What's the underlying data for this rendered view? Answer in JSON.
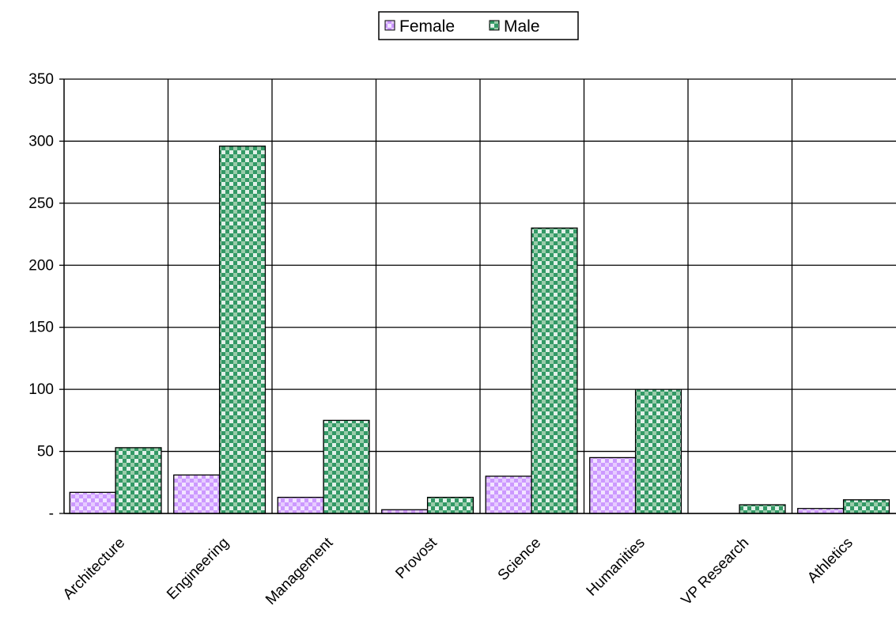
{
  "chart_data": {
    "type": "bar",
    "title": "",
    "xlabel": "",
    "ylabel": "",
    "categories": [
      "Architecture",
      "Engineering",
      "Management",
      "Provost",
      "Science",
      "Humanities",
      "VP Research",
      "Athletics"
    ],
    "series": [
      {
        "name": "Female",
        "values": [
          17,
          31,
          13,
          3,
          30,
          45,
          0,
          4
        ],
        "color": "#cc99ff"
      },
      {
        "name": "Male",
        "values": [
          53,
          296,
          75,
          13,
          230,
          100,
          7,
          11
        ],
        "color": "#339966"
      }
    ],
    "ylim": [
      0,
      350
    ],
    "yticks": [
      0,
      50,
      100,
      150,
      200,
      250,
      300,
      350
    ],
    "ytick_labels": [
      "-",
      "50",
      "100",
      "150",
      "200",
      "250",
      "300",
      "350"
    ],
    "grid": true,
    "legend_position": "top-center"
  }
}
